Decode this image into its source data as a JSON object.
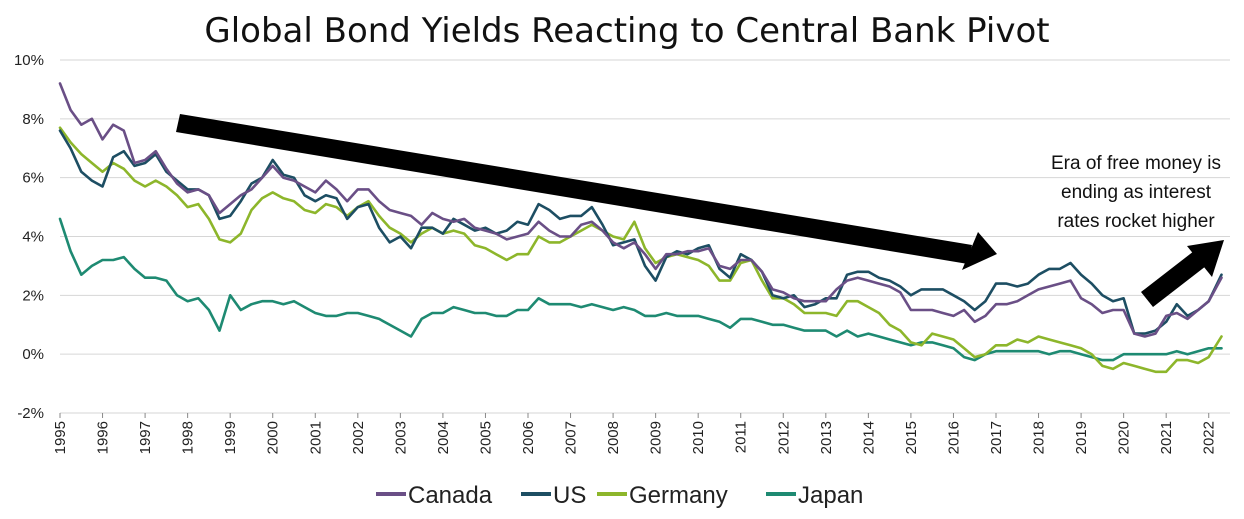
{
  "chart_data": {
    "type": "line",
    "title": "Global Bond Yields Reacting to Central Bank Pivot",
    "xlabel": "",
    "ylabel": "",
    "ylim": [
      -2,
      10
    ],
    "xlim": [
      1995,
      2022.5
    ],
    "y_ticks": [
      {
        "value": 10,
        "label": "10%"
      },
      {
        "value": 8,
        "label": "8%"
      },
      {
        "value": 6,
        "label": "6%"
      },
      {
        "value": 4,
        "label": "4%"
      },
      {
        "value": 2,
        "label": "2%"
      },
      {
        "value": 0,
        "label": "0%"
      },
      {
        "value": -2,
        "label": "-2%"
      }
    ],
    "x_ticks": [
      "1995",
      "1996",
      "1997",
      "1998",
      "1999",
      "2000",
      "2001",
      "2002",
      "2003",
      "2004",
      "2005",
      "2006",
      "2007",
      "2008",
      "2009",
      "2010",
      "2011",
      "2012",
      "2013",
      "2014",
      "2015",
      "2016",
      "2017",
      "2018",
      "2019",
      "2020",
      "2021",
      "2022"
    ],
    "grid": "horizontal",
    "legend_position": "bottom",
    "series": [
      {
        "name": "Canada",
        "color": "#6a4f86",
        "x": [
          1995,
          1995.25,
          1995.5,
          1995.75,
          1996,
          1996.25,
          1996.5,
          1996.75,
          1997,
          1997.25,
          1997.5,
          1997.75,
          1998,
          1998.25,
          1998.5,
          1998.75,
          1999,
          1999.25,
          1999.5,
          1999.75,
          2000,
          2000.25,
          2000.5,
          2000.75,
          2001,
          2001.25,
          2001.5,
          2001.75,
          2002,
          2002.25,
          2002.5,
          2002.75,
          2003,
          2003.25,
          2003.5,
          2003.75,
          2004,
          2004.25,
          2004.5,
          2004.75,
          2005,
          2005.25,
          2005.5,
          2005.75,
          2006,
          2006.25,
          2006.5,
          2006.75,
          2007,
          2007.25,
          2007.5,
          2007.75,
          2008,
          2008.25,
          2008.5,
          2008.75,
          2009,
          2009.25,
          2009.5,
          2009.75,
          2010,
          2010.25,
          2010.5,
          2010.75,
          2011,
          2011.25,
          2011.5,
          2011.75,
          2012,
          2012.25,
          2012.5,
          2012.75,
          2013,
          2013.25,
          2013.5,
          2013.75,
          2014,
          2014.25,
          2014.5,
          2014.75,
          2015,
          2015.25,
          2015.5,
          2015.75,
          2016,
          2016.25,
          2016.5,
          2016.75,
          2017,
          2017.25,
          2017.5,
          2017.75,
          2018,
          2018.25,
          2018.5,
          2018.75,
          2019,
          2019.25,
          2019.5,
          2019.75,
          2020,
          2020.25,
          2020.5,
          2020.75,
          2021,
          2021.25,
          2021.5,
          2021.75,
          2022,
          2022.3
        ],
        "y": [
          9.2,
          8.3,
          7.8,
          8.0,
          7.3,
          7.8,
          7.6,
          6.5,
          6.6,
          6.9,
          6.3,
          5.8,
          5.5,
          5.6,
          5.4,
          4.8,
          5.1,
          5.4,
          5.6,
          6.0,
          6.4,
          6.0,
          5.9,
          5.7,
          5.5,
          5.9,
          5.6,
          5.2,
          5.6,
          5.6,
          5.2,
          4.9,
          4.8,
          4.7,
          4.4,
          4.8,
          4.6,
          4.5,
          4.6,
          4.3,
          4.2,
          4.1,
          3.9,
          4.0,
          4.1,
          4.5,
          4.2,
          4.0,
          4.0,
          4.4,
          4.5,
          4.2,
          3.8,
          3.6,
          3.8,
          3.4,
          2.9,
          3.4,
          3.4,
          3.5,
          3.5,
          3.6,
          3.0,
          2.9,
          3.2,
          3.2,
          2.8,
          2.2,
          2.1,
          1.9,
          1.8,
          1.8,
          1.8,
          2.2,
          2.5,
          2.6,
          2.5,
          2.4,
          2.3,
          2.1,
          1.5,
          1.5,
          1.5,
          1.4,
          1.3,
          1.5,
          1.1,
          1.3,
          1.7,
          1.7,
          1.8,
          2.0,
          2.2,
          2.3,
          2.4,
          2.5,
          1.9,
          1.7,
          1.4,
          1.5,
          1.5,
          0.7,
          0.6,
          0.7,
          1.3,
          1.4,
          1.2,
          1.5,
          1.8,
          2.6
        ]
      },
      {
        "name": "US",
        "color": "#1d4e63",
        "x": [
          1995,
          1995.25,
          1995.5,
          1995.75,
          1996,
          1996.25,
          1996.5,
          1996.75,
          1997,
          1997.25,
          1997.5,
          1997.75,
          1998,
          1998.25,
          1998.5,
          1998.75,
          1999,
          1999.25,
          1999.5,
          1999.75,
          2000,
          2000.25,
          2000.5,
          2000.75,
          2001,
          2001.25,
          2001.5,
          2001.75,
          2002,
          2002.25,
          2002.5,
          2002.75,
          2003,
          2003.25,
          2003.5,
          2003.75,
          2004,
          2004.25,
          2004.5,
          2004.75,
          2005,
          2005.25,
          2005.5,
          2005.75,
          2006,
          2006.25,
          2006.5,
          2006.75,
          2007,
          2007.25,
          2007.5,
          2007.75,
          2008,
          2008.25,
          2008.5,
          2008.75,
          2009,
          2009.25,
          2009.5,
          2009.75,
          2010,
          2010.25,
          2010.5,
          2010.75,
          2011,
          2011.25,
          2011.5,
          2011.75,
          2012,
          2012.25,
          2012.5,
          2012.75,
          2013,
          2013.25,
          2013.5,
          2013.75,
          2014,
          2014.25,
          2014.5,
          2014.75,
          2015,
          2015.25,
          2015.5,
          2015.75,
          2016,
          2016.25,
          2016.5,
          2016.75,
          2017,
          2017.25,
          2017.5,
          2017.75,
          2018,
          2018.25,
          2018.5,
          2018.75,
          2019,
          2019.25,
          2019.5,
          2019.75,
          2020,
          2020.25,
          2020.5,
          2020.75,
          2021,
          2021.25,
          2021.5,
          2021.75,
          2022,
          2022.3
        ],
        "y": [
          7.6,
          7.0,
          6.2,
          5.9,
          5.7,
          6.7,
          6.9,
          6.4,
          6.5,
          6.8,
          6.2,
          5.9,
          5.6,
          5.6,
          5.4,
          4.6,
          4.7,
          5.2,
          5.8,
          6.0,
          6.6,
          6.1,
          6.0,
          5.4,
          5.2,
          5.4,
          5.3,
          4.6,
          5.0,
          5.1,
          4.3,
          3.8,
          4.0,
          3.6,
          4.3,
          4.3,
          4.1,
          4.6,
          4.4,
          4.2,
          4.3,
          4.1,
          4.2,
          4.5,
          4.4,
          5.1,
          4.9,
          4.6,
          4.7,
          4.7,
          5.0,
          4.4,
          3.7,
          3.8,
          3.9,
          3.0,
          2.5,
          3.3,
          3.5,
          3.4,
          3.6,
          3.7,
          2.9,
          2.6,
          3.4,
          3.2,
          2.8,
          2.0,
          1.9,
          2.0,
          1.6,
          1.7,
          1.9,
          1.9,
          2.7,
          2.8,
          2.8,
          2.6,
          2.5,
          2.3,
          2.0,
          2.2,
          2.2,
          2.2,
          2.0,
          1.8,
          1.5,
          1.8,
          2.4,
          2.4,
          2.3,
          2.4,
          2.7,
          2.9,
          2.9,
          3.1,
          2.7,
          2.4,
          2.0,
          1.8,
          1.9,
          0.7,
          0.7,
          0.8,
          1.1,
          1.7,
          1.3,
          1.5,
          1.8,
          2.7
        ]
      },
      {
        "name": "Germany",
        "color": "#8db62b",
        "x": [
          1995,
          1995.25,
          1995.5,
          1995.75,
          1996,
          1996.25,
          1996.5,
          1996.75,
          1997,
          1997.25,
          1997.5,
          1997.75,
          1998,
          1998.25,
          1998.5,
          1998.75,
          1999,
          1999.25,
          1999.5,
          1999.75,
          2000,
          2000.25,
          2000.5,
          2000.75,
          2001,
          2001.25,
          2001.5,
          2001.75,
          2002,
          2002.25,
          2002.5,
          2002.75,
          2003,
          2003.25,
          2003.5,
          2003.75,
          2004,
          2004.25,
          2004.5,
          2004.75,
          2005,
          2005.25,
          2005.5,
          2005.75,
          2006,
          2006.25,
          2006.5,
          2006.75,
          2007,
          2007.25,
          2007.5,
          2007.75,
          2008,
          2008.25,
          2008.5,
          2008.75,
          2009,
          2009.25,
          2009.5,
          2009.75,
          2010,
          2010.25,
          2010.5,
          2010.75,
          2011,
          2011.25,
          2011.5,
          2011.75,
          2012,
          2012.25,
          2012.5,
          2012.75,
          2013,
          2013.25,
          2013.5,
          2013.75,
          2014,
          2014.25,
          2014.5,
          2014.75,
          2015,
          2015.25,
          2015.5,
          2015.75,
          2016,
          2016.25,
          2016.5,
          2016.75,
          2017,
          2017.25,
          2017.5,
          2017.75,
          2018,
          2018.25,
          2018.5,
          2018.75,
          2019,
          2019.25,
          2019.5,
          2019.75,
          2020,
          2020.25,
          2020.5,
          2020.75,
          2021,
          2021.25,
          2021.5,
          2021.75,
          2022,
          2022.3
        ],
        "y": [
          7.7,
          7.2,
          6.8,
          6.5,
          6.2,
          6.5,
          6.3,
          5.9,
          5.7,
          5.9,
          5.7,
          5.4,
          5.0,
          5.1,
          4.6,
          3.9,
          3.8,
          4.1,
          4.9,
          5.3,
          5.5,
          5.3,
          5.2,
          4.9,
          4.8,
          5.1,
          5.0,
          4.7,
          5.0,
          5.2,
          4.7,
          4.3,
          4.1,
          3.8,
          4.1,
          4.3,
          4.1,
          4.2,
          4.1,
          3.7,
          3.6,
          3.4,
          3.2,
          3.4,
          3.4,
          4.0,
          3.8,
          3.8,
          4.0,
          4.2,
          4.4,
          4.2,
          4.0,
          3.9,
          4.5,
          3.6,
          3.1,
          3.3,
          3.4,
          3.3,
          3.2,
          3.0,
          2.5,
          2.5,
          3.1,
          3.2,
          2.5,
          1.9,
          1.9,
          1.7,
          1.4,
          1.4,
          1.4,
          1.3,
          1.8,
          1.8,
          1.6,
          1.4,
          1.0,
          0.8,
          0.4,
          0.3,
          0.7,
          0.6,
          0.5,
          0.2,
          -0.1,
          0.0,
          0.3,
          0.3,
          0.5,
          0.4,
          0.6,
          0.5,
          0.4,
          0.3,
          0.2,
          0.0,
          -0.4,
          -0.5,
          -0.3,
          -0.4,
          -0.5,
          -0.6,
          -0.6,
          -0.2,
          -0.2,
          -0.3,
          -0.1,
          0.6
        ]
      },
      {
        "name": "Japan",
        "color": "#1e8a72",
        "x": [
          1995,
          1995.25,
          1995.5,
          1995.75,
          1996,
          1996.25,
          1996.5,
          1996.75,
          1997,
          1997.25,
          1997.5,
          1997.75,
          1998,
          1998.25,
          1998.5,
          1998.75,
          1999,
          1999.25,
          1999.5,
          1999.75,
          2000,
          2000.25,
          2000.5,
          2000.75,
          2001,
          2001.25,
          2001.5,
          2001.75,
          2002,
          2002.25,
          2002.5,
          2002.75,
          2003,
          2003.25,
          2003.5,
          2003.75,
          2004,
          2004.25,
          2004.5,
          2004.75,
          2005,
          2005.25,
          2005.5,
          2005.75,
          2006,
          2006.25,
          2006.5,
          2006.75,
          2007,
          2007.25,
          2007.5,
          2007.75,
          2008,
          2008.25,
          2008.5,
          2008.75,
          2009,
          2009.25,
          2009.5,
          2009.75,
          2010,
          2010.25,
          2010.5,
          2010.75,
          2011,
          2011.25,
          2011.5,
          2011.75,
          2012,
          2012.25,
          2012.5,
          2012.75,
          2013,
          2013.25,
          2013.5,
          2013.75,
          2014,
          2014.25,
          2014.5,
          2014.75,
          2015,
          2015.25,
          2015.5,
          2015.75,
          2016,
          2016.25,
          2016.5,
          2016.75,
          2017,
          2017.25,
          2017.5,
          2017.75,
          2018,
          2018.25,
          2018.5,
          2018.75,
          2019,
          2019.25,
          2019.5,
          2019.75,
          2020,
          2020.25,
          2020.5,
          2020.75,
          2021,
          2021.25,
          2021.5,
          2021.75,
          2022,
          2022.3
        ],
        "y": [
          4.6,
          3.5,
          2.7,
          3.0,
          3.2,
          3.2,
          3.3,
          2.9,
          2.6,
          2.6,
          2.5,
          2.0,
          1.8,
          1.9,
          1.5,
          0.8,
          2.0,
          1.5,
          1.7,
          1.8,
          1.8,
          1.7,
          1.8,
          1.6,
          1.4,
          1.3,
          1.3,
          1.4,
          1.4,
          1.3,
          1.2,
          1.0,
          0.8,
          0.6,
          1.2,
          1.4,
          1.4,
          1.6,
          1.5,
          1.4,
          1.4,
          1.3,
          1.3,
          1.5,
          1.5,
          1.9,
          1.7,
          1.7,
          1.7,
          1.6,
          1.7,
          1.6,
          1.5,
          1.6,
          1.5,
          1.3,
          1.3,
          1.4,
          1.3,
          1.3,
          1.3,
          1.2,
          1.1,
          0.9,
          1.2,
          1.2,
          1.1,
          1.0,
          1.0,
          0.9,
          0.8,
          0.8,
          0.8,
          0.6,
          0.8,
          0.6,
          0.7,
          0.6,
          0.5,
          0.4,
          0.3,
          0.4,
          0.4,
          0.3,
          0.2,
          -0.1,
          -0.2,
          0.0,
          0.1,
          0.1,
          0.1,
          0.1,
          0.1,
          0.0,
          0.1,
          0.1,
          0.0,
          -0.1,
          -0.2,
          -0.2,
          0.0,
          0.0,
          0.0,
          0.0,
          0.0,
          0.1,
          0.0,
          0.1,
          0.2,
          0.2
        ]
      }
    ],
    "annotation": {
      "lines": [
        "Era of free money is",
        "ending as interest",
        "rates rocket higher"
      ]
    }
  }
}
